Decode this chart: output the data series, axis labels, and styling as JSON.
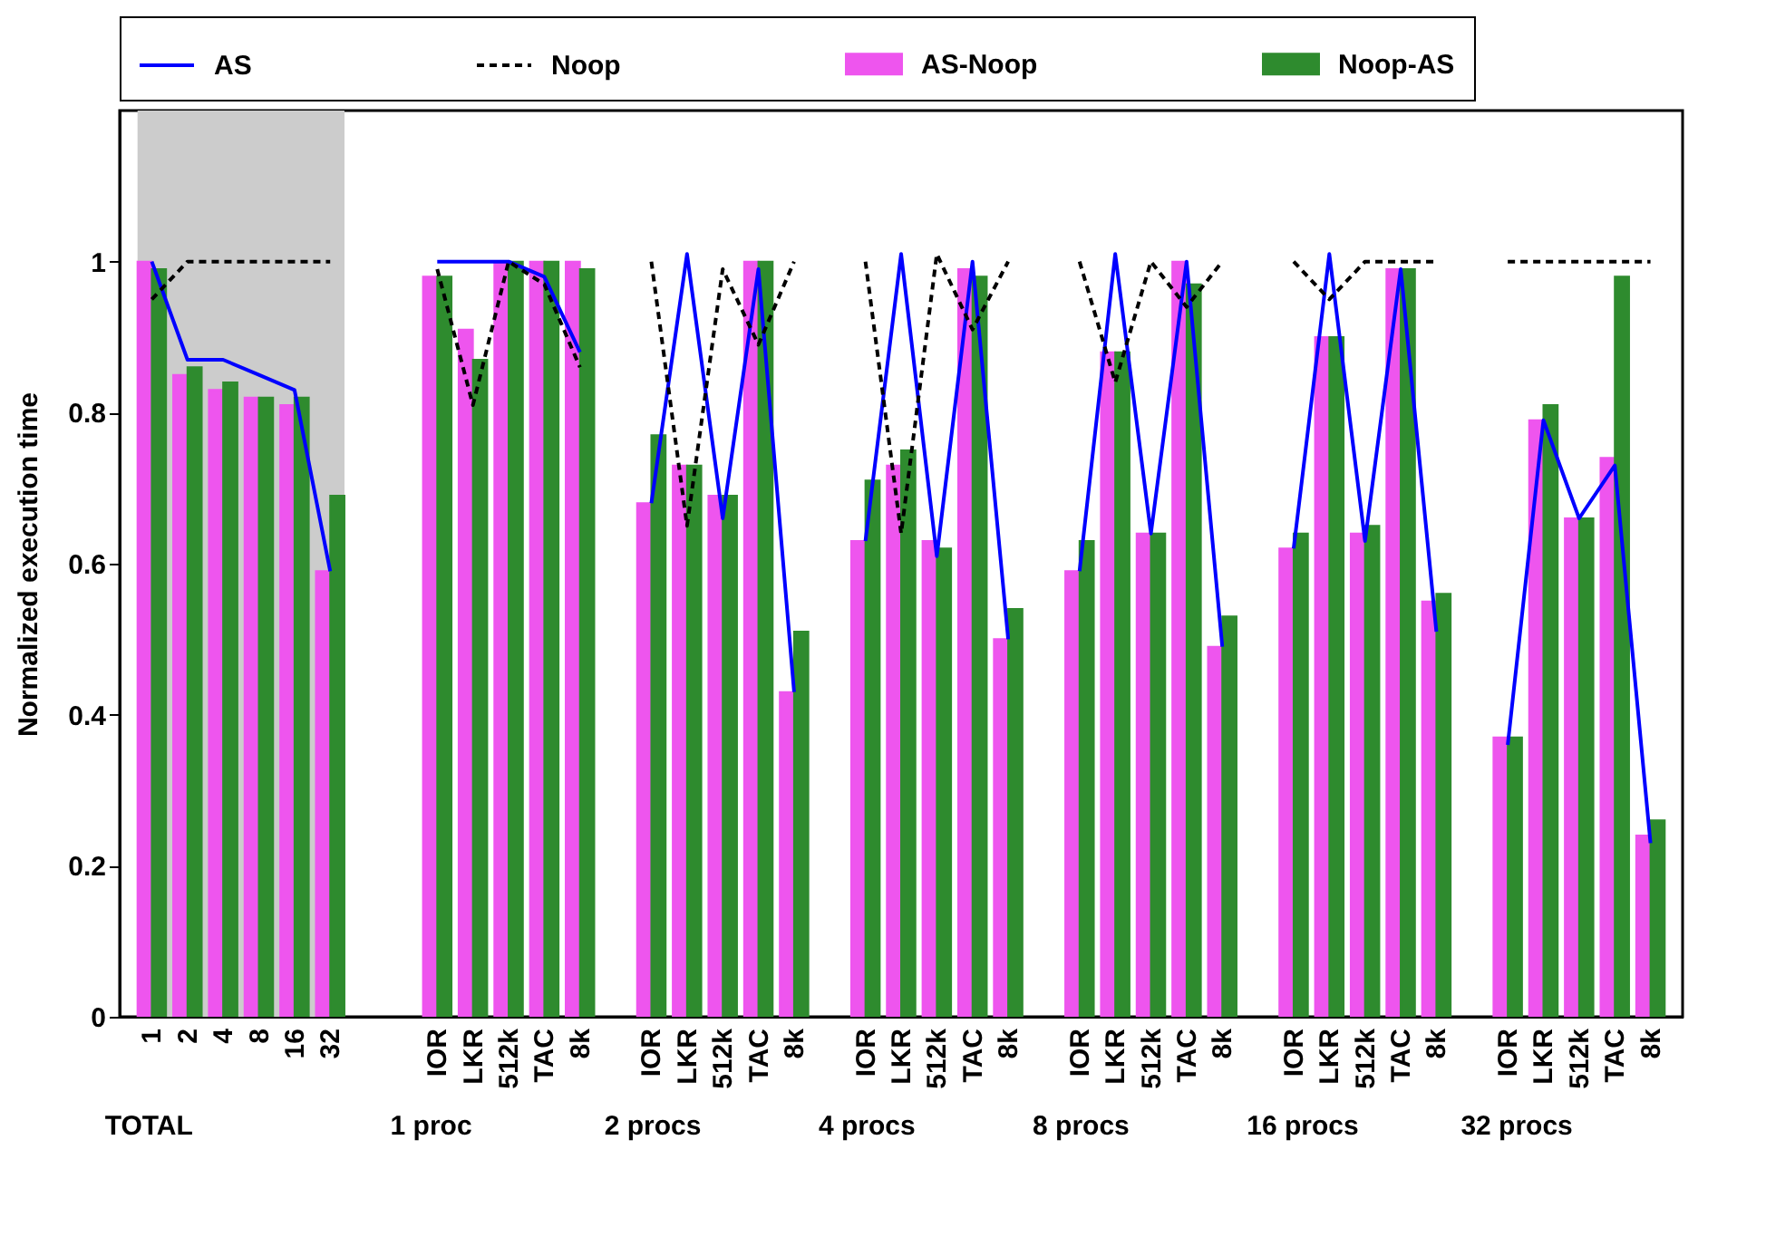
{
  "chart_data": {
    "type": "bar",
    "ylabel": "Normalized execution time",
    "annotations": [
      "TOTAL",
      "1 proc",
      "2 procs",
      "4 procs",
      "8 procs",
      "16 procs",
      "32 procs"
    ],
    "categories": [
      "1",
      "2",
      "4",
      "8",
      "16",
      "32",
      null,
      null,
      "IOR",
      "LKR",
      "512k",
      "TAC",
      "8k",
      null,
      "IOR",
      "LKR",
      "512k",
      "TAC",
      "8k",
      null,
      "IOR",
      "LKR",
      "512k",
      "TAC",
      "8k",
      null,
      "IOR",
      "LKR",
      "512k",
      "TAC",
      "8k",
      null,
      "IOR",
      "LKR",
      "512k",
      "TAC",
      "8k",
      null,
      "IOR",
      "LKR",
      "512k",
      "TAC",
      "8k"
    ],
    "series": [
      {
        "name": "AS",
        "type": "line",
        "line_style": "solid",
        "color": "#0000ff",
        "values": [
          1.0,
          0.87,
          0.87,
          0.85,
          0.83,
          0.59,
          null,
          null,
          1.0,
          1.0,
          1.0,
          0.98,
          0.88,
          null,
          0.68,
          1.01,
          0.66,
          0.99,
          0.43,
          null,
          0.63,
          1.01,
          0.61,
          1.0,
          0.5,
          null,
          0.59,
          1.01,
          0.64,
          1.0,
          0.49,
          null,
          0.62,
          1.01,
          0.63,
          0.99,
          0.51,
          null,
          0.36,
          0.79,
          0.66,
          0.73,
          0.23
        ]
      },
      {
        "name": "Noop",
        "type": "line",
        "line_style": "dashed",
        "color": "#000000",
        "values": [
          0.95,
          1.0,
          1.0,
          1.0,
          1.0,
          1.0,
          null,
          null,
          0.99,
          0.81,
          1.0,
          0.97,
          0.86,
          null,
          1.0,
          0.65,
          0.99,
          0.89,
          1.0,
          null,
          1.0,
          0.64,
          1.01,
          0.91,
          1.0,
          null,
          1.0,
          0.84,
          1.0,
          0.94,
          1.0,
          null,
          1.0,
          0.95,
          1.0,
          1.0,
          1.0,
          null,
          1.0,
          1.0,
          1.0,
          1.0,
          1.0
        ]
      },
      {
        "name": "AS-Noop",
        "color": "#ee55ee",
        "values": [
          1.0,
          0.85,
          0.83,
          0.82,
          0.81,
          0.59,
          null,
          null,
          0.98,
          0.91,
          1.0,
          1.0,
          1.0,
          null,
          0.68,
          0.73,
          0.69,
          1.0,
          0.43,
          null,
          0.63,
          0.73,
          0.63,
          0.99,
          0.5,
          null,
          0.59,
          0.88,
          0.64,
          1.0,
          0.49,
          null,
          0.62,
          0.9,
          0.64,
          0.99,
          0.55,
          null,
          0.37,
          0.79,
          0.66,
          0.74,
          0.24
        ]
      },
      {
        "name": "Noop-AS",
        "color": "#2e8b2e",
        "values": [
          0.99,
          0.86,
          0.84,
          0.82,
          0.82,
          0.69,
          null,
          null,
          0.98,
          0.87,
          1.0,
          1.0,
          0.99,
          null,
          0.77,
          0.73,
          0.69,
          1.0,
          0.51,
          null,
          0.71,
          0.75,
          0.62,
          0.98,
          0.54,
          null,
          0.63,
          0.88,
          0.64,
          0.97,
          0.53,
          null,
          0.64,
          0.9,
          0.65,
          0.99,
          0.56,
          null,
          0.37,
          0.81,
          0.66,
          0.98,
          0.26
        ]
      }
    ],
    "ylim": [
      0,
      1.2
    ],
    "yticks": [
      0,
      0.2,
      0.4,
      0.6,
      0.8,
      1
    ],
    "grid": false,
    "legend": "top",
    "bands": [
      {
        "axis": "x",
        "from": "1",
        "to": "32",
        "color": "#cccccc"
      }
    ]
  }
}
